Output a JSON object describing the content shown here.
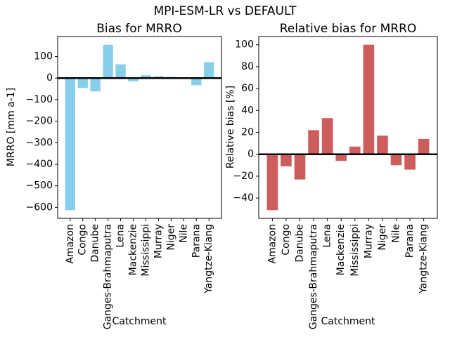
{
  "figure": {
    "suptitle": "MPI-ESM-LR vs DEFAULT",
    "background_color": "#ffffff",
    "zero_line_color": "#000000"
  },
  "chart_data": [
    {
      "type": "bar",
      "title": "Bias for MRRO",
      "xlabel": "Catchment",
      "ylabel": "MRRO [mm a-1]",
      "categories": [
        "Amazon",
        "Congo",
        "Danube",
        "Ganges-Brahmaputra",
        "Lena",
        "Mackenzie",
        "Mississippi",
        "Murray",
        "Niger",
        "Nile",
        "Parana",
        "Yangtze-Kiang"
      ],
      "values": [
        -613,
        -46,
        -62,
        155,
        64,
        -15,
        13,
        9,
        6,
        -1,
        -33,
        74
      ],
      "bar_color": "#87CEEB",
      "ylim": [
        -651,
        193
      ],
      "yticks": [
        -600,
        -500,
        -400,
        -300,
        -200,
        -100,
        0,
        100
      ],
      "grid": false,
      "legend": false,
      "zero_line": true
    },
    {
      "type": "bar",
      "title": "Relative bias for MRRO",
      "xlabel": "Catchment",
      "ylabel": "Relative bias [%]",
      "categories": [
        "Amazon",
        "Congo",
        "Danube",
        "Ganges-Brahmaputra",
        "Lena",
        "Mackenzie",
        "Mississippi",
        "Murray",
        "Niger",
        "Nile",
        "Parana",
        "Yangtze-Kiang"
      ],
      "values": [
        -51,
        -11,
        -23,
        22,
        33,
        -6,
        7,
        100,
        17,
        -10,
        -14,
        14
      ],
      "bar_color": "#CD5C5C",
      "ylim": [
        -58.5,
        107.5
      ],
      "yticks": [
        -40,
        -20,
        0,
        20,
        40,
        60,
        80,
        100
      ],
      "grid": false,
      "legend": false,
      "zero_line": true
    }
  ]
}
